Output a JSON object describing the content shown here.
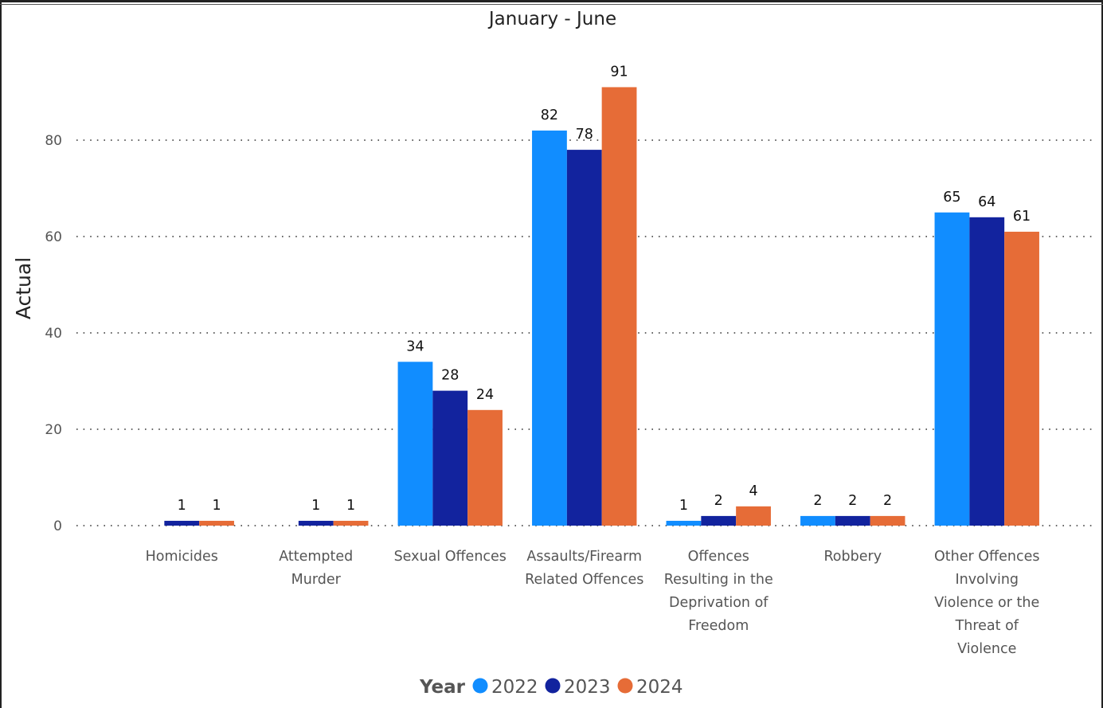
{
  "chart_data": {
    "type": "bar",
    "title": "January - June",
    "ylabel": "Actual",
    "xlabel": "",
    "ylim": [
      0,
      91
    ],
    "yticks": [
      0,
      20,
      40,
      60,
      80
    ],
    "grid": true,
    "legend_position": "bottom",
    "legend_title": "Year",
    "categories": [
      "Homicides",
      "Attempted Murder",
      "Sexual Offences",
      "Assaults/Firearm Related Offences",
      "Offences Resulting in the Deprivation of Freedom",
      "Robbery",
      "Other Offences Involving Violence or the Threat of Violence"
    ],
    "category_lines": [
      [
        "Homicides"
      ],
      [
        "Attempted",
        "Murder"
      ],
      [
        "Sexual Offences"
      ],
      [
        "Assaults/Firearm",
        "Related Offences"
      ],
      [
        "Offences",
        "Resulting in the",
        "Deprivation of",
        "Freedom"
      ],
      [
        "Robbery"
      ],
      [
        "Other Offences",
        "Involving",
        "Violence or the",
        "Threat of",
        "Violence"
      ]
    ],
    "series": [
      {
        "name": "2022",
        "color": "#118DFF",
        "values": [
          null,
          null,
          34,
          82,
          1,
          2,
          65
        ]
      },
      {
        "name": "2023",
        "color": "#12239E",
        "values": [
          1,
          1,
          28,
          78,
          2,
          2,
          64
        ]
      },
      {
        "name": "2024",
        "color": "#E66C37",
        "values": [
          1,
          1,
          24,
          91,
          4,
          2,
          61
        ]
      }
    ]
  }
}
